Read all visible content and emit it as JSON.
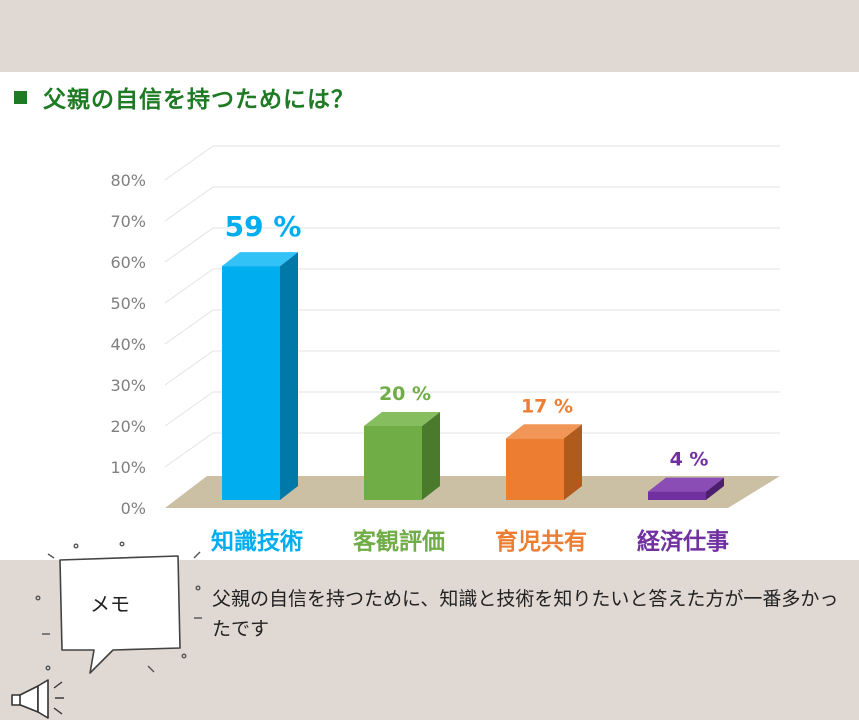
{
  "title": "父親の自信を持つためには？",
  "chart_data": {
    "type": "bar",
    "categories": [
      "知識技術",
      "客観評価",
      "育児共有",
      "経済仕事"
    ],
    "values": [
      59,
      20,
      17,
      4
    ],
    "value_labels": [
      "59 %",
      "20 %",
      "17 %",
      "4 %"
    ],
    "yticks": [
      "0%",
      "10%",
      "20%",
      "30%",
      "40%",
      "50%",
      "60%",
      "70%",
      "80%"
    ],
    "ylim": [
      0,
      80
    ],
    "grid": true,
    "colors": {
      "front": [
        "#00aeef",
        "#70ad47",
        "#ed7d31",
        "#7030a0"
      ],
      "side": [
        "#0078a8",
        "#4a7a2c",
        "#b05a1c",
        "#4b1f6e"
      ],
      "top": [
        "#33c2f5",
        "#86bd5f",
        "#f29657",
        "#8a4cb5"
      ],
      "floor": "#cbbfa4"
    }
  },
  "memo": {
    "label": "メモ",
    "text": "父親の自信を持つために、知識と技術を知りたいと答えた方が一番多かったです"
  }
}
